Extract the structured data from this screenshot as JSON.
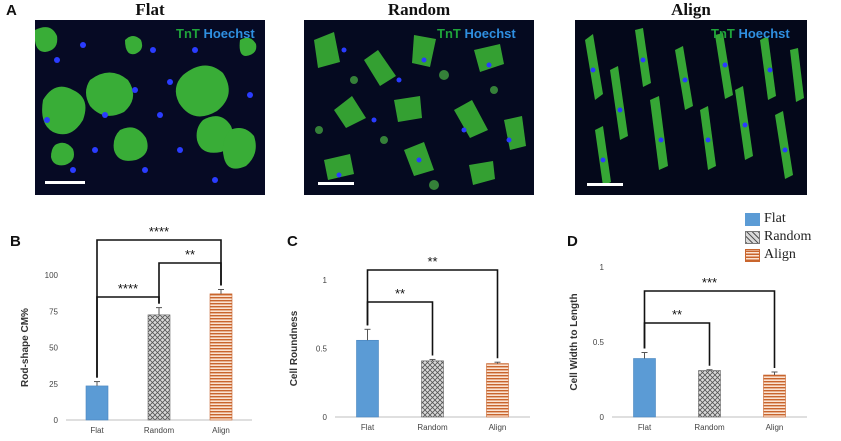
{
  "panels": {
    "A": "A",
    "B": "B",
    "C": "C",
    "D": "D"
  },
  "images": [
    {
      "title": "Flat",
      "stain1": "TnT",
      "stain2": "Hoechst"
    },
    {
      "title": "Random",
      "stain1": "TnT",
      "stain2": "Hoechst"
    },
    {
      "title": "Align",
      "stain1": "TnT",
      "stain2": "Hoechst"
    }
  ],
  "legend": [
    {
      "name": "Flat",
      "color": "#5b9bd5",
      "pattern": "solid"
    },
    {
      "name": "Random",
      "color": "#8c8c8c",
      "pattern": "crosshatch"
    },
    {
      "name": "Align",
      "color": "#e8a07a",
      "pattern": "stripes"
    }
  ],
  "colors": {
    "tnt": "#1fa33a",
    "hoechst": "#2f8fe0",
    "flat": "#5b9bd5",
    "random_hatch": "#8c8c8c",
    "align_stripe": "#e07b39"
  },
  "chart_data": [
    {
      "panel": "B",
      "type": "bar",
      "categories": [
        "Flat",
        "Random",
        "Align"
      ],
      "values": [
        23.5,
        72.5,
        87
      ],
      "errors": [
        3,
        5,
        3
      ],
      "ylabel": "Rod-shape CM%",
      "ylim": [
        0,
        100
      ],
      "yticks": [
        "0",
        "25",
        "50",
        "75",
        "100"
      ],
      "ytick_values": [
        0,
        25,
        50,
        75,
        100
      ],
      "significance": [
        {
          "from": 0,
          "to": 1,
          "label": "****"
        },
        {
          "from": 1,
          "to": 2,
          "label": "**"
        },
        {
          "from": 0,
          "to": 2,
          "label": "****"
        }
      ]
    },
    {
      "panel": "C",
      "type": "bar",
      "categories": [
        "Flat",
        "Random",
        "Align"
      ],
      "values": [
        0.56,
        0.41,
        0.39
      ],
      "errors": [
        0.08,
        0.01,
        0.01
      ],
      "ylabel": "Cell Roundness",
      "ylim": [
        0,
        1
      ],
      "yticks": [
        "0",
        "0.5",
        "1"
      ],
      "ytick_values": [
        0,
        0.5,
        1
      ],
      "significance": [
        {
          "from": 0,
          "to": 1,
          "label": "**"
        },
        {
          "from": 0,
          "to": 2,
          "label": "**"
        }
      ]
    },
    {
      "panel": "D",
      "type": "bar",
      "categories": [
        "Flat",
        "Random",
        "Align"
      ],
      "values": [
        0.39,
        0.31,
        0.28
      ],
      "errors": [
        0.04,
        0.005,
        0.02
      ],
      "ylabel": "Cell Width to Length",
      "ylim": [
        0,
        1
      ],
      "yticks": [
        "0",
        "0.5",
        "1"
      ],
      "ytick_values": [
        0,
        0.5,
        1
      ],
      "significance": [
        {
          "from": 0,
          "to": 1,
          "label": "**"
        },
        {
          "from": 0,
          "to": 2,
          "label": "***"
        }
      ]
    }
  ]
}
